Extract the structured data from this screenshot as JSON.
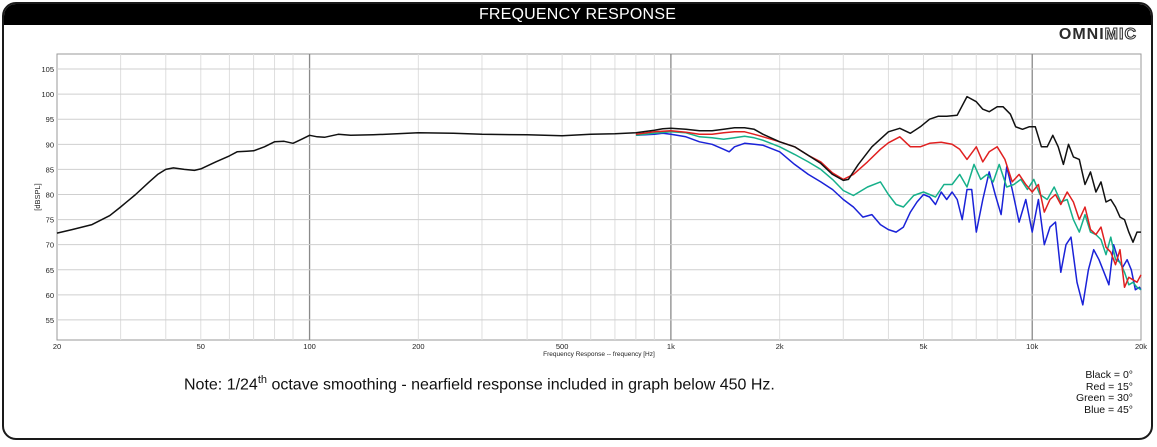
{
  "header": {
    "title": "FREQUENCY RESPONSE"
  },
  "logo": {
    "part1": "OMNI",
    "part2": "MIC"
  },
  "note": {
    "prefix": "Note: 1/24",
    "sup": "th",
    "suffix": " octave smoothing - nearfield response included in graph below 450 Hz."
  },
  "legend": [
    "Black = 0°",
    "Red = 15°",
    "Green = 30°",
    "Blue = 45°"
  ],
  "chart_data": {
    "type": "line",
    "xscale": "log",
    "xlim": [
      20,
      20000
    ],
    "ylim": [
      51,
      108
    ],
    "ylabel": "[dBSPL]",
    "xlabel": "Frequency Response -- frequency [Hz]",
    "yticks": [
      55,
      60,
      65,
      70,
      75,
      80,
      85,
      90,
      95,
      100,
      105
    ],
    "xticks": [
      {
        "v": 20,
        "label": "20"
      },
      {
        "v": 50,
        "label": "50"
      },
      {
        "v": 100,
        "label": "100"
      },
      {
        "v": 200,
        "label": "200"
      },
      {
        "v": 500,
        "label": "500"
      },
      {
        "v": 1000,
        "label": "1k"
      },
      {
        "v": 2000,
        "label": "2k"
      },
      {
        "v": 5000,
        "label": "5k"
      },
      {
        "v": 10000,
        "label": "10k"
      },
      {
        "v": 20000,
        "label": "20k"
      }
    ],
    "grid": true,
    "legend_position": "bottom-right",
    "series": [
      {
        "name": "Black = 0°",
        "color": "#111111",
        "points": [
          [
            20,
            72.3
          ],
          [
            22,
            73.0
          ],
          [
            25,
            74.0
          ],
          [
            28,
            75.8
          ],
          [
            30,
            77.5
          ],
          [
            33,
            80.0
          ],
          [
            36,
            82.5
          ],
          [
            38,
            84.0
          ],
          [
            40,
            85.0
          ],
          [
            42,
            85.3
          ],
          [
            45,
            85.0
          ],
          [
            48,
            84.8
          ],
          [
            50,
            85.1
          ],
          [
            55,
            86.5
          ],
          [
            60,
            87.7
          ],
          [
            63,
            88.5
          ],
          [
            67,
            88.6
          ],
          [
            70,
            88.7
          ],
          [
            75,
            89.5
          ],
          [
            80,
            90.5
          ],
          [
            85,
            90.6
          ],
          [
            90,
            90.2
          ],
          [
            95,
            91.0
          ],
          [
            100,
            91.8
          ],
          [
            105,
            91.5
          ],
          [
            110,
            91.4
          ],
          [
            120,
            92.0
          ],
          [
            130,
            91.8
          ],
          [
            150,
            91.9
          ],
          [
            200,
            92.3
          ],
          [
            250,
            92.2
          ],
          [
            300,
            92.0
          ],
          [
            400,
            91.9
          ],
          [
            500,
            91.7
          ],
          [
            600,
            92.0
          ],
          [
            700,
            92.1
          ],
          [
            800,
            92.3
          ],
          [
            900,
            92.8
          ],
          [
            950,
            93.1
          ],
          [
            1000,
            93.2
          ],
          [
            1100,
            93.0
          ],
          [
            1200,
            92.7
          ],
          [
            1300,
            92.7
          ],
          [
            1400,
            93.0
          ],
          [
            1500,
            93.3
          ],
          [
            1600,
            93.3
          ],
          [
            1700,
            93.0
          ],
          [
            1800,
            92.0
          ],
          [
            2000,
            90.5
          ],
          [
            2200,
            89.5
          ],
          [
            2400,
            87.8
          ],
          [
            2600,
            86.2
          ],
          [
            2800,
            84.0
          ],
          [
            3000,
            82.8
          ],
          [
            3100,
            83.0
          ],
          [
            3300,
            86.0
          ],
          [
            3600,
            89.5
          ],
          [
            4000,
            92.5
          ],
          [
            4300,
            93.2
          ],
          [
            4600,
            92.2
          ],
          [
            4900,
            93.5
          ],
          [
            5200,
            95.0
          ],
          [
            5500,
            95.6
          ],
          [
            5800,
            95.6
          ],
          [
            6200,
            95.8
          ],
          [
            6600,
            99.5
          ],
          [
            7000,
            98.5
          ],
          [
            7300,
            97.0
          ],
          [
            7600,
            96.5
          ],
          [
            8000,
            97.5
          ],
          [
            8300,
            97.5
          ],
          [
            8700,
            96.0
          ],
          [
            9000,
            93.5
          ],
          [
            9400,
            93.0
          ],
          [
            9800,
            93.5
          ],
          [
            10200,
            93.5
          ],
          [
            10600,
            89.5
          ],
          [
            11000,
            89.5
          ],
          [
            11400,
            91.8
          ],
          [
            11800,
            89.5
          ],
          [
            12200,
            86.0
          ],
          [
            12600,
            90.0
          ],
          [
            13000,
            87.5
          ],
          [
            13500,
            87.0
          ],
          [
            14000,
            82.0
          ],
          [
            14500,
            84.5
          ],
          [
            15000,
            80.5
          ],
          [
            15500,
            82.5
          ],
          [
            16000,
            78.5
          ],
          [
            16500,
            79.0
          ],
          [
            17000,
            77.5
          ],
          [
            17500,
            75.5
          ],
          [
            18000,
            75.0
          ],
          [
            18500,
            72.5
          ],
          [
            19000,
            70.5
          ],
          [
            19500,
            72.5
          ],
          [
            20000,
            72.5
          ]
        ]
      },
      {
        "name": "Red = 15°",
        "color": "#e02020",
        "points": [
          [
            800,
            92.0
          ],
          [
            900,
            92.5
          ],
          [
            1000,
            92.7
          ],
          [
            1100,
            92.4
          ],
          [
            1200,
            92.0
          ],
          [
            1300,
            92.0
          ],
          [
            1400,
            92.3
          ],
          [
            1500,
            92.5
          ],
          [
            1600,
            92.5
          ],
          [
            1700,
            92.0
          ],
          [
            1800,
            91.5
          ],
          [
            2000,
            90.5
          ],
          [
            2200,
            89.5
          ],
          [
            2400,
            87.8
          ],
          [
            2600,
            86.5
          ],
          [
            2800,
            84.3
          ],
          [
            3000,
            83.0
          ],
          [
            3200,
            84.0
          ],
          [
            3500,
            86.5
          ],
          [
            3800,
            89.0
          ],
          [
            4000,
            90.3
          ],
          [
            4300,
            91.5
          ],
          [
            4600,
            89.5
          ],
          [
            4900,
            89.5
          ],
          [
            5200,
            90.2
          ],
          [
            5600,
            90.4
          ],
          [
            6000,
            90.0
          ],
          [
            6300,
            89.0
          ],
          [
            6600,
            87.0
          ],
          [
            7000,
            89.5
          ],
          [
            7300,
            86.5
          ],
          [
            7600,
            88.5
          ],
          [
            8000,
            89.5
          ],
          [
            8400,
            87.0
          ],
          [
            8800,
            82.5
          ],
          [
            9200,
            84.0
          ],
          [
            9600,
            82.0
          ],
          [
            10000,
            80.5
          ],
          [
            10400,
            82.0
          ],
          [
            10800,
            76.5
          ],
          [
            11200,
            79.0
          ],
          [
            11600,
            80.0
          ],
          [
            12000,
            78.0
          ],
          [
            12500,
            80.5
          ],
          [
            13000,
            78.5
          ],
          [
            13500,
            75.0
          ],
          [
            14000,
            77.5
          ],
          [
            14500,
            73.0
          ],
          [
            15000,
            72.0
          ],
          [
            15500,
            73.5
          ],
          [
            16000,
            69.5
          ],
          [
            16500,
            68.5
          ],
          [
            17000,
            66.0
          ],
          [
            17500,
            69.0
          ],
          [
            18000,
            61.5
          ],
          [
            18500,
            63.5
          ],
          [
            19000,
            63.0
          ],
          [
            19500,
            62.5
          ],
          [
            20000,
            64.0
          ]
        ]
      },
      {
        "name": "Green = 30°",
        "color": "#16b08a",
        "points": [
          [
            800,
            91.8
          ],
          [
            900,
            92.2
          ],
          [
            1000,
            92.5
          ],
          [
            1100,
            92.3
          ],
          [
            1200,
            91.5
          ],
          [
            1300,
            91.3
          ],
          [
            1400,
            91.0
          ],
          [
            1500,
            91.3
          ],
          [
            1600,
            91.6
          ],
          [
            1700,
            91.3
          ],
          [
            1800,
            90.8
          ],
          [
            2000,
            89.5
          ],
          [
            2200,
            88.0
          ],
          [
            2400,
            86.5
          ],
          [
            2600,
            85.0
          ],
          [
            2800,
            83.0
          ],
          [
            3000,
            80.8
          ],
          [
            3200,
            79.8
          ],
          [
            3500,
            81.5
          ],
          [
            3800,
            82.5
          ],
          [
            4000,
            80.0
          ],
          [
            4200,
            78.0
          ],
          [
            4400,
            77.5
          ],
          [
            4700,
            79.8
          ],
          [
            5000,
            80.5
          ],
          [
            5200,
            80.0
          ],
          [
            5400,
            79.5
          ],
          [
            5700,
            82.0
          ],
          [
            6000,
            82.0
          ],
          [
            6300,
            84.0
          ],
          [
            6600,
            81.5
          ],
          [
            6900,
            86.0
          ],
          [
            7200,
            83.0
          ],
          [
            7500,
            84.0
          ],
          [
            7800,
            82.5
          ],
          [
            8100,
            86.0
          ],
          [
            8500,
            81.5
          ],
          [
            8900,
            82.0
          ],
          [
            9300,
            83.0
          ],
          [
            9700,
            81.0
          ],
          [
            10100,
            83.0
          ],
          [
            10500,
            80.0
          ],
          [
            11000,
            79.0
          ],
          [
            11500,
            81.5
          ],
          [
            12000,
            78.5
          ],
          [
            12500,
            79.0
          ],
          [
            13000,
            75.0
          ],
          [
            13500,
            72.5
          ],
          [
            14000,
            76.0
          ],
          [
            14500,
            72.5
          ],
          [
            15000,
            72.0
          ],
          [
            15500,
            71.0
          ],
          [
            16000,
            68.0
          ],
          [
            16500,
            71.5
          ],
          [
            17000,
            67.0
          ],
          [
            17500,
            66.5
          ],
          [
            18000,
            64.5
          ],
          [
            18500,
            62.0
          ],
          [
            19000,
            62.5
          ],
          [
            19500,
            61.5
          ],
          [
            20000,
            61.0
          ]
        ]
      },
      {
        "name": "Blue = 45°",
        "color": "#1a22d8",
        "points": [
          [
            800,
            91.8
          ],
          [
            900,
            92.0
          ],
          [
            950,
            92.2
          ],
          [
            1000,
            92.0
          ],
          [
            1100,
            91.5
          ],
          [
            1200,
            90.5
          ],
          [
            1300,
            90.0
          ],
          [
            1400,
            89.0
          ],
          [
            1450,
            88.5
          ],
          [
            1500,
            89.5
          ],
          [
            1600,
            90.2
          ],
          [
            1700,
            90.0
          ],
          [
            1800,
            89.8
          ],
          [
            2000,
            88.5
          ],
          [
            2200,
            86.0
          ],
          [
            2400,
            84.0
          ],
          [
            2600,
            82.5
          ],
          [
            2800,
            81.0
          ],
          [
            3000,
            79.0
          ],
          [
            3200,
            77.5
          ],
          [
            3400,
            75.5
          ],
          [
            3600,
            76.0
          ],
          [
            3800,
            74.0
          ],
          [
            4000,
            73.0
          ],
          [
            4200,
            72.5
          ],
          [
            4400,
            73.5
          ],
          [
            4600,
            76.5
          ],
          [
            4800,
            78.5
          ],
          [
            5000,
            80.0
          ],
          [
            5200,
            79.5
          ],
          [
            5400,
            78.0
          ],
          [
            5600,
            80.5
          ],
          [
            5800,
            79.0
          ],
          [
            6000,
            80.5
          ],
          [
            6200,
            79.0
          ],
          [
            6400,
            75.0
          ],
          [
            6600,
            81.0
          ],
          [
            6800,
            81.0
          ],
          [
            7000,
            72.5
          ],
          [
            7300,
            79.0
          ],
          [
            7600,
            84.5
          ],
          [
            7900,
            80.0
          ],
          [
            8200,
            76.0
          ],
          [
            8500,
            85.5
          ],
          [
            8800,
            81.0
          ],
          [
            9200,
            74.5
          ],
          [
            9600,
            79.0
          ],
          [
            10000,
            72.5
          ],
          [
            10400,
            79.0
          ],
          [
            10800,
            70.0
          ],
          [
            11200,
            73.5
          ],
          [
            11600,
            74.5
          ],
          [
            12000,
            64.5
          ],
          [
            12400,
            70.0
          ],
          [
            12800,
            71.5
          ],
          [
            13300,
            62.5
          ],
          [
            13800,
            58.0
          ],
          [
            14300,
            65.0
          ],
          [
            14800,
            69.0
          ],
          [
            15300,
            67.0
          ],
          [
            15800,
            64.5
          ],
          [
            16300,
            62.0
          ],
          [
            16800,
            70.0
          ],
          [
            17300,
            67.0
          ],
          [
            17800,
            65.5
          ],
          [
            18300,
            67.0
          ],
          [
            18800,
            65.0
          ],
          [
            19300,
            61.0
          ],
          [
            19800,
            61.5
          ],
          [
            20000,
            61.0
          ]
        ]
      }
    ]
  }
}
